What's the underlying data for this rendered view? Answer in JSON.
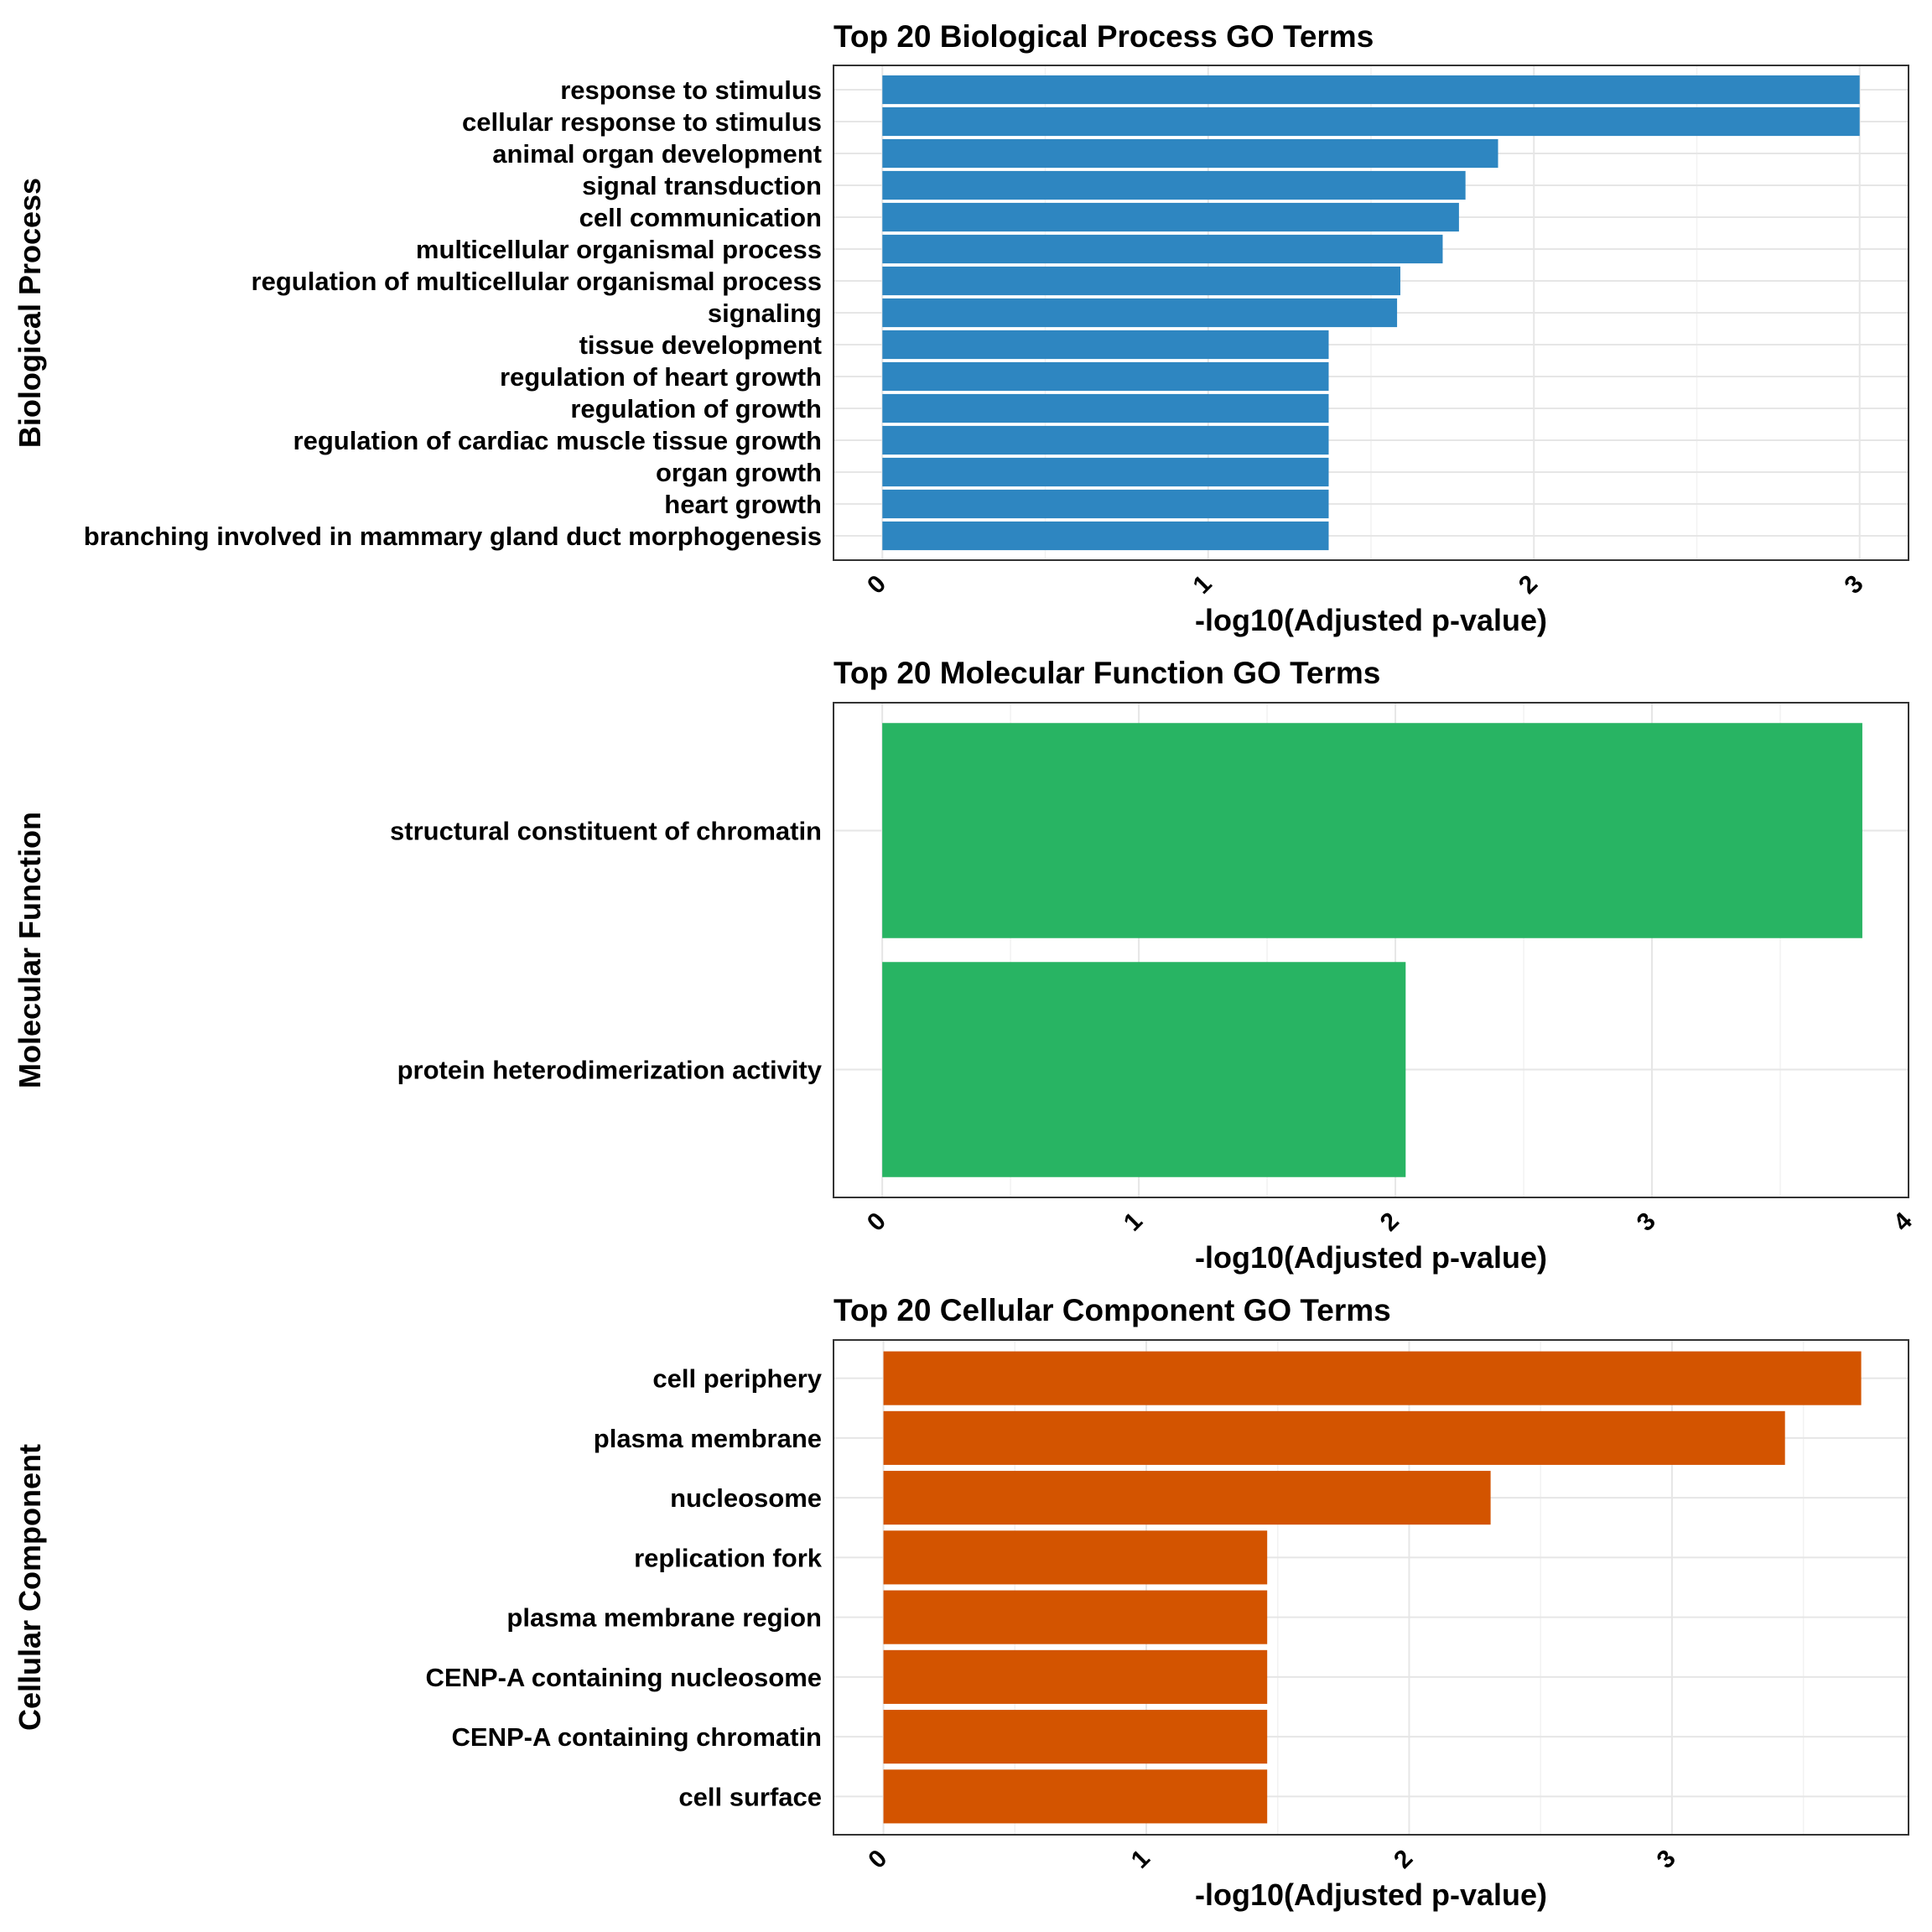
{
  "chart_data": [
    {
      "type": "bar",
      "orientation": "horizontal",
      "title": "Top 20 Biological Process GO Terms",
      "xlabel": "-log10(Adjusted p-value)",
      "ylabel": "Biological Process",
      "color": "#2E86C1",
      "xlim": [
        -0.15,
        3.15
      ],
      "ticks": [
        0,
        1,
        2,
        3
      ],
      "grid": true,
      "categories": [
        "response to stimulus",
        "cellular response to stimulus",
        "animal organ development",
        "signal transduction",
        "cell communication",
        "multicellular organismal process",
        "regulation of multicellular organismal process",
        "signaling",
        "tissue development",
        "regulation of heart growth",
        "regulation of growth",
        "regulation of cardiac muscle tissue growth",
        "organ growth",
        "heart growth",
        "branching involved in mammary gland duct morphogenesis"
      ],
      "values": [
        3.0,
        3.0,
        1.89,
        1.79,
        1.77,
        1.72,
        1.59,
        1.58,
        1.37,
        1.37,
        1.37,
        1.37,
        1.37,
        1.37,
        1.37
      ]
    },
    {
      "type": "bar",
      "orientation": "horizontal",
      "title": "Top 20 Molecular Function GO Terms",
      "xlabel": "-log10(Adjusted p-value)",
      "ylabel": "Molecular Function",
      "color": "#28B463",
      "xlim": [
        -0.19,
        4.0
      ],
      "ticks": [
        0,
        1,
        2,
        3,
        4
      ],
      "grid": true,
      "categories": [
        "structural constituent of chromatin",
        "protein heterodimerization activity"
      ],
      "values": [
        3.82,
        2.04
      ]
    },
    {
      "type": "bar",
      "orientation": "horizontal",
      "title": "Top 20 Cellular Component GO Terms",
      "xlabel": "-log10(Adjusted p-value)",
      "ylabel": "Cellular Component",
      "color": "#D35400",
      "xlim": [
        -0.19,
        3.9
      ],
      "ticks": [
        0,
        1,
        2,
        3
      ],
      "grid": true,
      "categories": [
        "cell periphery",
        "plasma membrane",
        "nucleosome",
        "replication fork",
        "plasma membrane region",
        "CENP-A containing nucleosome",
        "CENP-A containing chromatin",
        "cell surface"
      ],
      "values": [
        3.72,
        3.43,
        2.31,
        1.46,
        1.46,
        1.46,
        1.46,
        1.46
      ]
    }
  ]
}
